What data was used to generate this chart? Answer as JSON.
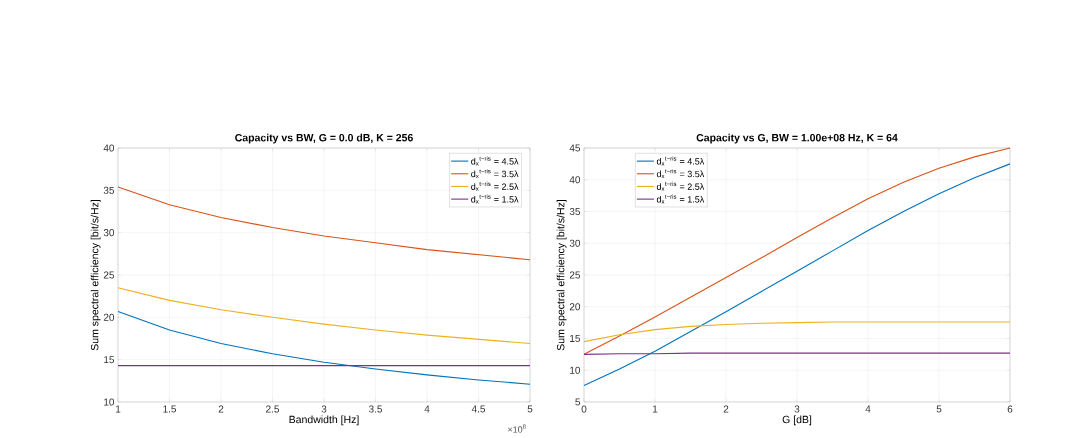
{
  "chart_data": [
    {
      "type": "line",
      "title": "Capacity vs BW, G = 0.0 dB, K = 256",
      "xlabel": "Bandwidth [Hz]",
      "ylabel": "Sum spectral efficiency [bit/s/Hz]",
      "x": [
        1,
        1.5,
        2,
        2.5,
        3,
        3.5,
        4,
        4.5,
        5
      ],
      "series": [
        {
          "name": "d$_{x}$$^{t−ris}$ = 4.5λ",
          "color": "#0072bd",
          "values": [
            20.7,
            18.5,
            16.9,
            15.7,
            14.7,
            13.9,
            13.2,
            12.6,
            12.1
          ]
        },
        {
          "name": "d$_{x}$$^{t−ris}$ = 3.5λ",
          "color": "#d95319",
          "values": [
            35.4,
            33.3,
            31.8,
            30.6,
            29.6,
            28.8,
            28.0,
            27.4,
            26.8
          ]
        },
        {
          "name": "d$_{x}$$^{t−ris}$ = 2.5λ",
          "color": "#edb120",
          "values": [
            23.5,
            22.0,
            20.9,
            20.0,
            19.2,
            18.5,
            17.9,
            17.4,
            16.9
          ]
        },
        {
          "name": "d$_{x}$$^{t−ris}$ = 1.5λ",
          "color": "#7e2f8e",
          "values": [
            14.3,
            14.3,
            14.3,
            14.3,
            14.3,
            14.3,
            14.3,
            14.3,
            14.3
          ]
        }
      ],
      "xlim": [
        1,
        5
      ],
      "xticks": [
        1,
        1.5,
        2,
        2.5,
        3,
        3.5,
        4,
        4.5,
        5
      ],
      "ylim": [
        10,
        40
      ],
      "yticks": [
        10,
        15,
        20,
        25,
        30,
        35,
        40
      ],
      "annotations": [
        "×10$^{8}$"
      ],
      "grid": true,
      "legend": "top right",
      "line_style": "solid",
      "marker": "none"
    },
    {
      "type": "line",
      "title": "Capacity vs G, BW = 1.00e+08 Hz, K = 64",
      "xlabel": "G [dB]",
      "ylabel": "Sum spectral efficiency [bit/s/Hz]",
      "x": [
        0,
        0.5,
        1,
        1.5,
        2,
        2.5,
        3,
        3.5,
        4,
        4.5,
        5,
        5.5,
        6
      ],
      "series": [
        {
          "name": "d$_{x}$$^{t−ris}$ = 4.5λ",
          "color": "#0072bd",
          "values": [
            7.6,
            10.2,
            13.0,
            16.1,
            19.2,
            22.4,
            25.6,
            28.8,
            32.0,
            35.0,
            37.8,
            40.3,
            42.5
          ]
        },
        {
          "name": "d$_{x}$$^{t−ris}$ = 3.5λ",
          "color": "#d95319",
          "values": [
            12.5,
            15.4,
            18.4,
            21.5,
            24.6,
            27.7,
            30.9,
            34.0,
            37.0,
            39.6,
            41.8,
            43.6,
            45.0
          ]
        },
        {
          "name": "d$_{x}$$^{t−ris}$ = 2.5λ",
          "color": "#edb120",
          "values": [
            14.5,
            15.6,
            16.4,
            16.9,
            17.2,
            17.4,
            17.5,
            17.6,
            17.6,
            17.6,
            17.6,
            17.6,
            17.6
          ]
        },
        {
          "name": "d$_{x}$$^{t−ris}$ = 1.5λ",
          "color": "#7e2f8e",
          "values": [
            12.5,
            12.6,
            12.6,
            12.7,
            12.7,
            12.7,
            12.7,
            12.7,
            12.7,
            12.7,
            12.7,
            12.7,
            12.7
          ]
        }
      ],
      "xlim": [
        0,
        6
      ],
      "xticks": [
        0,
        1,
        2,
        3,
        4,
        5,
        6
      ],
      "ylim": [
        5,
        45
      ],
      "yticks": [
        5,
        10,
        15,
        20,
        25,
        30,
        35,
        40,
        45
      ],
      "grid": true,
      "legend": "top left",
      "line_style": "solid",
      "marker": "none"
    }
  ]
}
